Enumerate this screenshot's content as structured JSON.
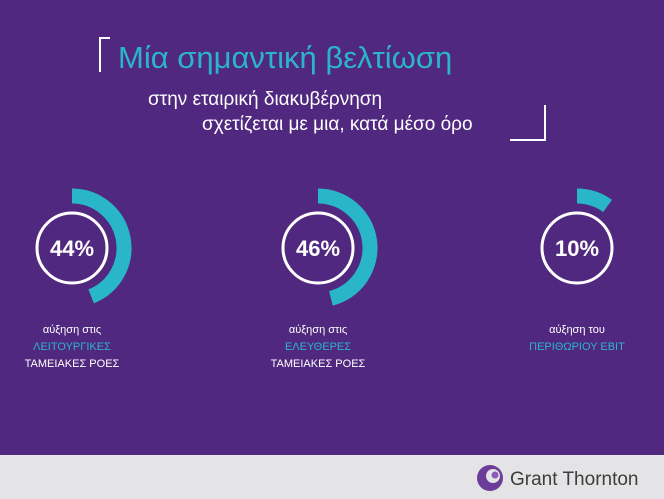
{
  "header": {
    "title": "Μία σημαντική βελτίωση",
    "line1": "στην εταιρική διακυβέρνηση",
    "line2": "σχετίζεται με μια, κατά μέσο όρο"
  },
  "stats": [
    {
      "value": 44,
      "value_label": "44%",
      "caption": [
        "αύξηση στις",
        "ΛΕΙΤΟΥΡΓΙΚΕΣ",
        "ΤΑΜΕΙΑΚΕΣ ΡΟΕΣ"
      ]
    },
    {
      "value": 46,
      "value_label": "46%",
      "caption": [
        "αύξηση στις",
        "ΕΛΕΥΘΕΡΕΣ",
        "ΤΑΜΕΙΑΚΕΣ ΡΟΕΣ"
      ]
    },
    {
      "value": 10,
      "value_label": "10%",
      "caption": [
        "αύξηση του",
        "ΠΕΡΙΘΩΡΙΟΥ EBIT"
      ]
    }
  ],
  "footer": {
    "brand": "Grant Thornton"
  }
}
